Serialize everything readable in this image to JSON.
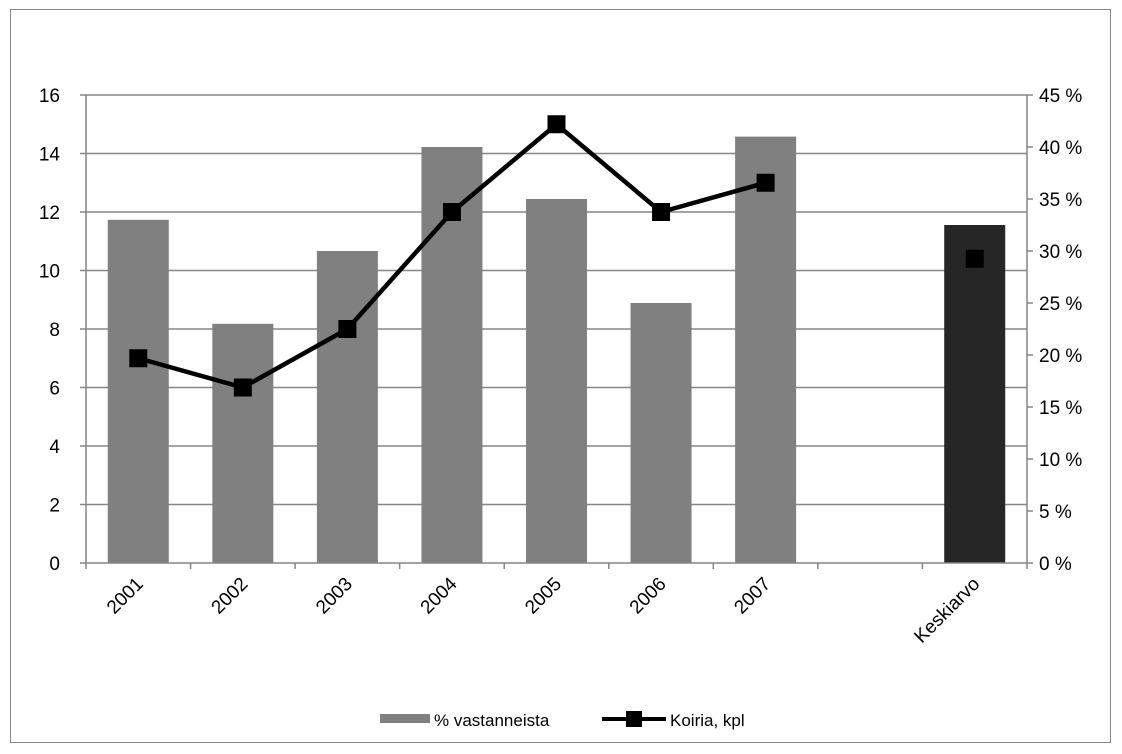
{
  "chart_data": {
    "type": "bar",
    "categories": [
      "2001",
      "2002",
      "2003",
      "2004",
      "2005",
      "2006",
      "2007",
      "",
      "Keskiarvo"
    ],
    "series": [
      {
        "name": "% vastanneista",
        "chart_type": "bar",
        "axis": "right",
        "values": [
          0.33,
          0.23,
          0.3,
          0.4,
          0.35,
          0.25,
          0.41,
          null,
          0.325
        ],
        "colors": [
          "#808080",
          "#808080",
          "#808080",
          "#808080",
          "#808080",
          "#808080",
          "#808080",
          null,
          "#262626"
        ]
      },
      {
        "name": "Koiria, kpl",
        "chart_type": "line",
        "axis": "left",
        "values": [
          7,
          6,
          8,
          12,
          15,
          12,
          13,
          null,
          10.4
        ],
        "color": "#000000",
        "marker": "square"
      }
    ],
    "y_left": {
      "min": 0,
      "max": 16,
      "ticks": [
        "0",
        "2",
        "4",
        "6",
        "8",
        "10",
        "12",
        "14",
        "16"
      ]
    },
    "y_right": {
      "min": 0,
      "max": 0.45,
      "ticks": [
        "0 %",
        "5 %",
        "10 %",
        "15 %",
        "20 %",
        "25 %",
        "30 %",
        "35 %",
        "40 %",
        "45 %"
      ]
    },
    "gridlines": true,
    "legend_position": "bottom",
    "grid_color": "#868686"
  }
}
